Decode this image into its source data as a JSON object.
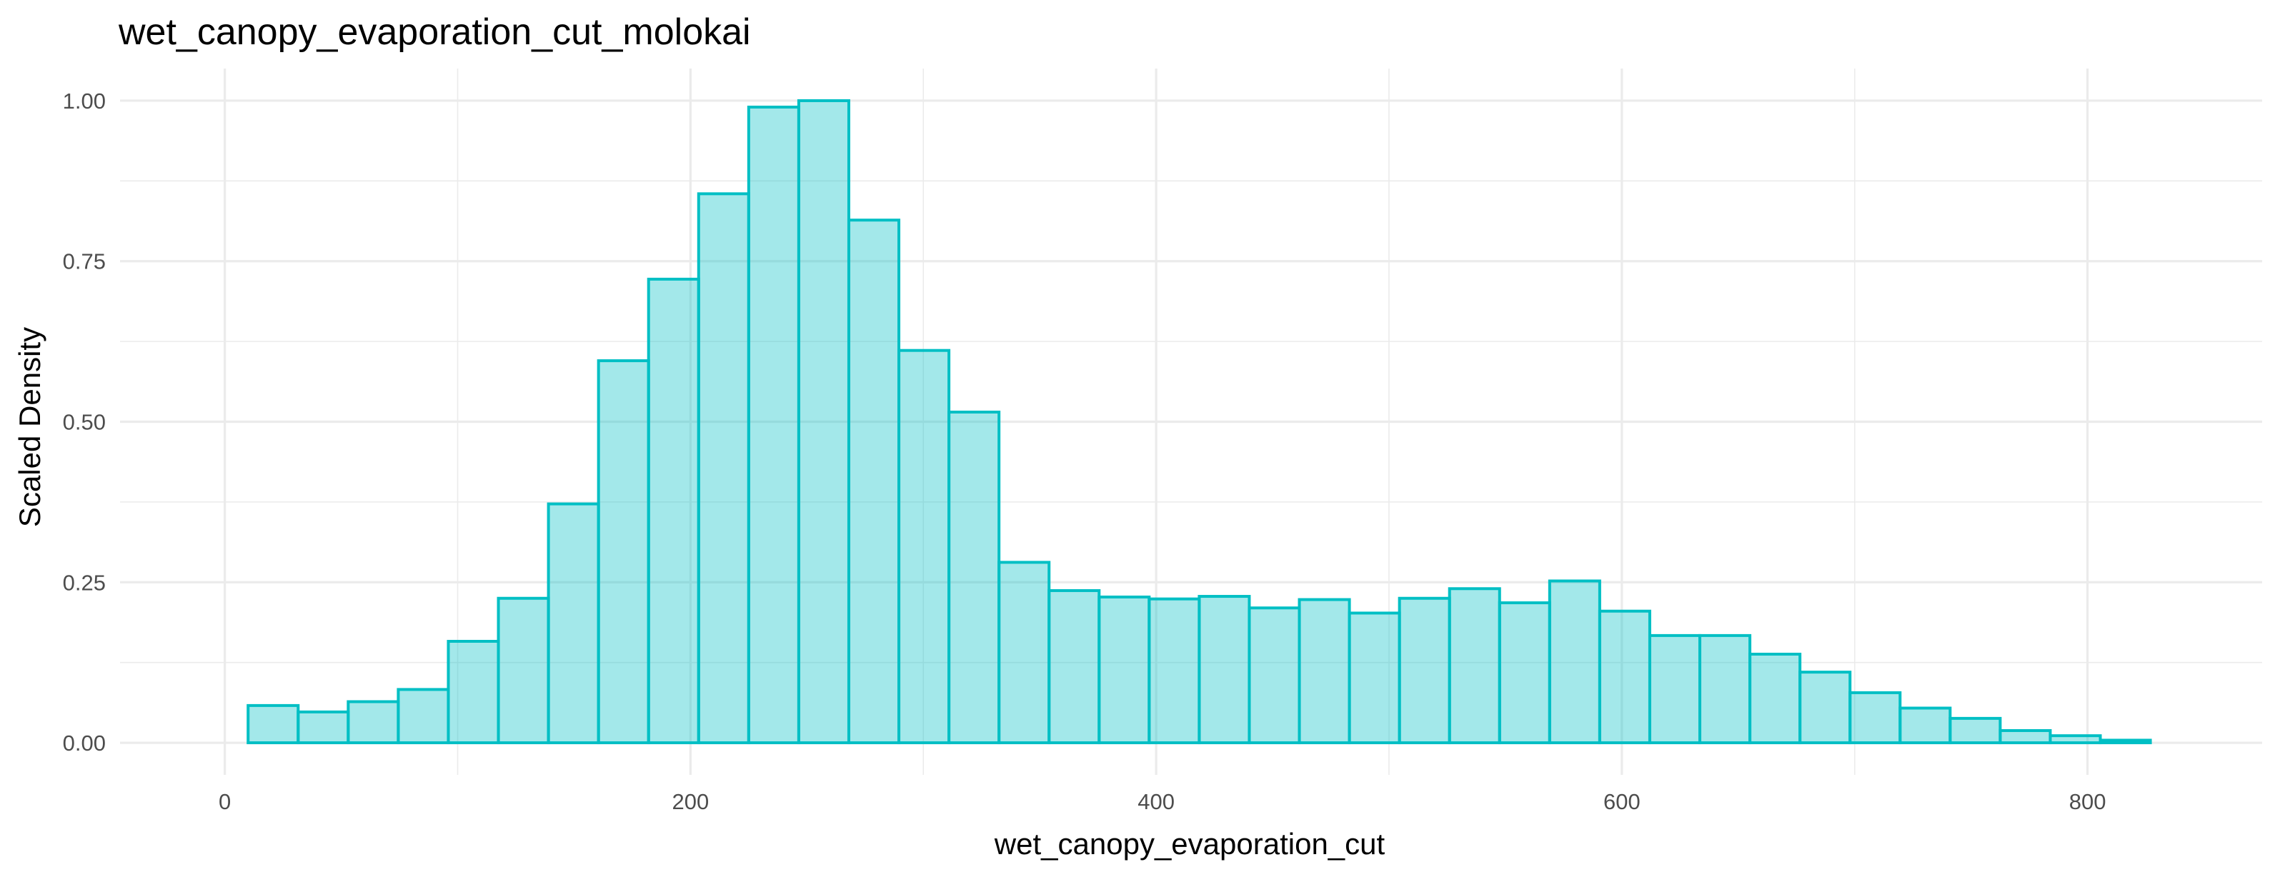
{
  "chart_data": {
    "type": "bar",
    "title": "wet_canopy_evaporation_cut_molokai",
    "xlabel": "wet_canopy_evaporation_cut",
    "ylabel": "Scaled Density",
    "xlim": [
      -45,
      875
    ],
    "ylim": [
      -0.05,
      1.05
    ],
    "x_ticks": [
      0,
      200,
      400,
      600,
      800
    ],
    "x_tick_labels": [
      "0",
      "200",
      "400",
      "600",
      "800"
    ],
    "x_minor_ticks": [
      100,
      300,
      500,
      700
    ],
    "y_ticks": [
      0,
      0.25,
      0.5,
      0.75,
      1
    ],
    "y_tick_labels": [
      "0.00",
      "0.25",
      "0.50",
      "0.75",
      "1.00"
    ],
    "y_minor_ticks": [
      0.125,
      0.375,
      0.625,
      0.875
    ],
    "grid": true,
    "bin_start": 10,
    "bin_width": 21.5,
    "values": [
      0.058,
      0.048,
      0.064,
      0.083,
      0.158,
      0.225,
      0.372,
      0.595,
      0.722,
      0.855,
      0.99,
      1.0,
      0.814,
      0.611,
      0.515,
      0.281,
      0.237,
      0.227,
      0.224,
      0.228,
      0.21,
      0.223,
      0.202,
      0.225,
      0.24,
      0.218,
      0.252,
      0.205,
      0.167,
      0.167,
      0.138,
      0.11,
      0.078,
      0.054,
      0.038,
      0.019,
      0.011,
      0.004
    ],
    "colors": {
      "fill": "#00BFC4",
      "fill_opacity": 0.36,
      "stroke": "#00BFC4",
      "background": "#FFFFFF",
      "grid": "#EBEBEB"
    }
  }
}
